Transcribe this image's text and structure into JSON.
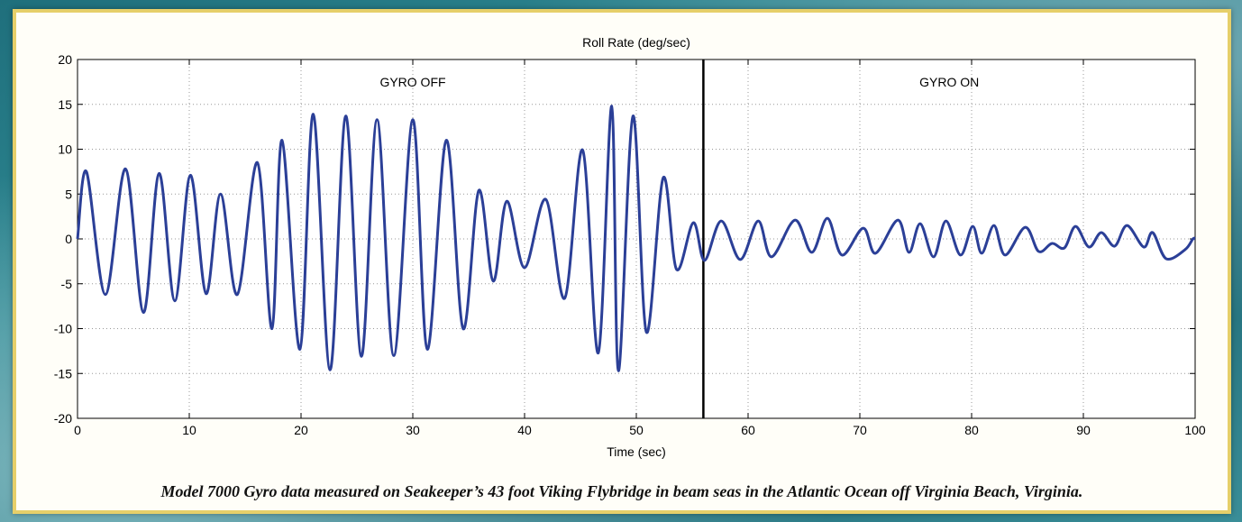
{
  "caption": "Model 7000 Gyro data measured on Seakeeper’s 43 foot Viking Flybridge in beam seas in the Atlantic Ocean off Virginia Beach, Virginia.",
  "chart_data": {
    "type": "line",
    "title": "Roll Rate (deg/sec)",
    "xlabel": "Time (sec)",
    "ylabel": "",
    "xlim": [
      0,
      100
    ],
    "ylim": [
      -20,
      20
    ],
    "xticks": [
      0,
      10,
      20,
      30,
      40,
      50,
      60,
      70,
      80,
      90,
      100
    ],
    "yticks": [
      20,
      15,
      10,
      5,
      0,
      -5,
      -10,
      -15,
      -20
    ],
    "grid": true,
    "line_color": "#2b3f97",
    "divider_x": 56,
    "annotations": [
      {
        "text": "GYRO OFF",
        "x": 30,
        "y": 17.5
      },
      {
        "text": "GYRO ON",
        "x": 78,
        "y": 17.5
      }
    ],
    "series": [
      {
        "x": [
          0,
          0.8,
          2.5,
          4.3,
          5.9,
          7.3,
          8.7,
          10.1,
          11.5,
          12.8,
          14.3,
          16.1,
          17.4,
          18.3,
          19.9,
          21.1,
          22.6,
          24.0,
          25.4,
          26.8,
          28.3,
          30.0,
          31.3,
          33.0,
          34.5,
          35.9,
          37.2,
          38.4,
          40.0,
          41.9,
          43.6,
          45.2,
          46.6,
          47.8,
          48.4,
          49.7,
          50.9,
          52.4,
          53.6,
          55.1,
          56.1,
          57.6,
          59.3,
          60.9,
          62.1,
          64.2,
          65.7,
          67.1,
          68.4,
          70.3,
          71.4,
          73.4,
          74.4,
          75.4,
          76.6,
          77.7,
          79.0,
          80.1,
          80.9,
          82.0,
          83.0,
          84.8,
          86.0,
          87.2,
          88.3,
          89.3,
          90.5,
          91.6,
          92.8,
          93.9,
          95.4,
          96.2,
          97.4,
          99.1,
          99.8,
          100
        ],
        "y": [
          0,
          7.5,
          -6.2,
          7.8,
          -8.2,
          7.3,
          -6.9,
          7.1,
          -6.1,
          5.0,
          -6.2,
          8.5,
          -10.0,
          11.0,
          -12.3,
          13.9,
          -14.6,
          13.7,
          -13.1,
          13.3,
          -13.0,
          13.3,
          -12.3,
          11.0,
          -10.0,
          5.4,
          -4.7,
          4.2,
          -3.2,
          4.4,
          -6.6,
          9.9,
          -12.7,
          14.8,
          -14.7,
          13.7,
          -10.4,
          6.8,
          -3.4,
          1.8,
          -2.4,
          2.0,
          -2.3,
          2.0,
          -2.0,
          2.1,
          -1.5,
          2.3,
          -1.8,
          1.2,
          -1.6,
          2.1,
          -1.5,
          1.7,
          -2.0,
          2.0,
          -1.8,
          1.4,
          -1.6,
          1.5,
          -1.8,
          1.3,
          -1.4,
          -0.5,
          -1.0,
          1.4,
          -0.9,
          0.7,
          -0.8,
          1.5,
          -0.9,
          0.7,
          -2.2,
          -1.2,
          0,
          0
        ]
      }
    ]
  }
}
